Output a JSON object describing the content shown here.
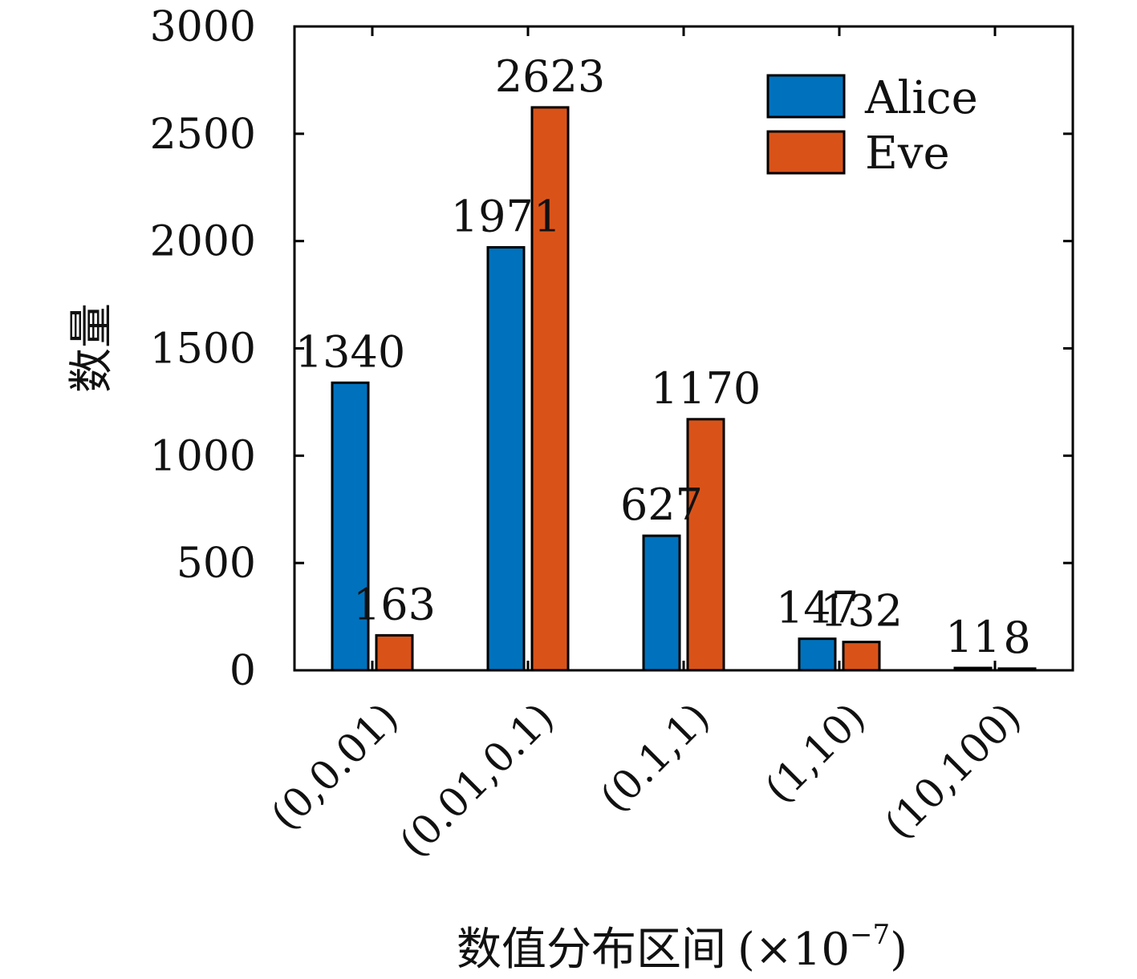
{
  "chart_data": {
    "type": "bar",
    "categories": [
      "(0,0.01)",
      "(0.01,0.1)",
      "(0.1,1)",
      "(1,10)",
      "(10,100)"
    ],
    "series": [
      {
        "name": "Alice",
        "values": [
          1340,
          1971,
          627,
          147,
          11
        ],
        "color": "#0072BD"
      },
      {
        "name": "Eve",
        "values": [
          163,
          2623,
          1170,
          132,
          8
        ],
        "color": "#D95319"
      }
    ],
    "xlabel": "数值分布区间",
    "xlabel_unit_prefix": "(×10",
    "xlabel_unit_exponent": "−7",
    "xlabel_unit_suffix": ")",
    "ylabel": "数量",
    "ylim": [
      0,
      3000
    ],
    "yticks": [
      "0",
      "500",
      "1000",
      "1500",
      "2000",
      "2500",
      "3000"
    ],
    "ytick_values": [
      0,
      500,
      1000,
      1500,
      2000,
      2500,
      3000
    ],
    "data_labels": true,
    "legend_position": "top-right",
    "grid": false
  }
}
